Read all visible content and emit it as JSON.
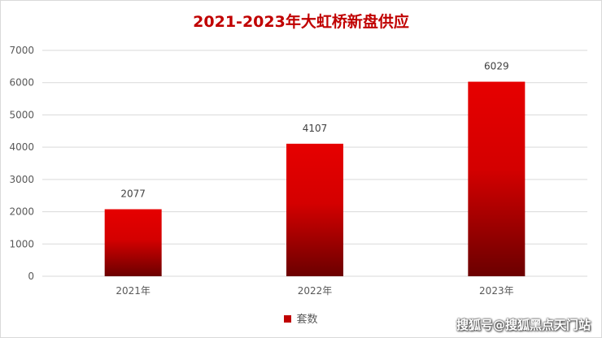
{
  "chart_data": {
    "type": "bar",
    "title": "2021-2023年大虹桥新盘供应",
    "categories": [
      "2021年",
      "2022年",
      "2023年"
    ],
    "series": [
      {
        "name": "套数",
        "values": [
          2077,
          4107,
          6029
        ]
      }
    ],
    "data_labels": [
      "2077",
      "4107",
      "6029"
    ],
    "ylim": [
      0,
      7000
    ],
    "yticks": [
      0,
      1000,
      2000,
      3000,
      4000,
      5000,
      6000,
      7000
    ],
    "grid": true,
    "legend_position": "bottom"
  },
  "colors": {
    "bar_top": "#e60000",
    "bar_bottom": "#6b0000",
    "title": "#c00000"
  },
  "watermark": "搜狐号@搜狐黑点天门站"
}
